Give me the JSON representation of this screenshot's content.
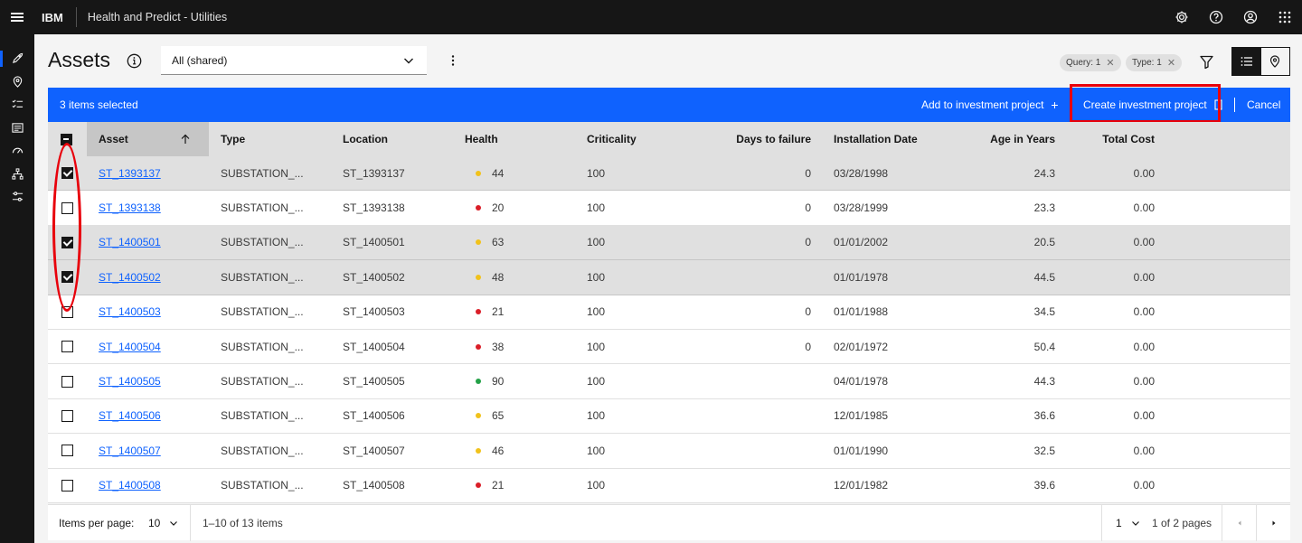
{
  "header": {
    "brand": "IBM",
    "app_name": "Health and Predict - Utilities",
    "icons": [
      "settings-icon",
      "help-icon",
      "user-avatar-icon",
      "app-switcher-icon"
    ]
  },
  "rail": {
    "icons": [
      "rocket-icon",
      "location-icon",
      "task-list-icon",
      "dashboard-icon",
      "gauge-icon",
      "hierarchy-icon",
      "settings-adjust-icon"
    ]
  },
  "page": {
    "title": "Assets",
    "view_select": "All (shared)",
    "tags": [
      {
        "label": "Query: 1"
      },
      {
        "label": "Type: 1"
      }
    ]
  },
  "batch": {
    "count_label": "3 items selected",
    "add_label": "Add to investment project",
    "create_label": "Create investment project",
    "cancel_label": "Cancel"
  },
  "table": {
    "columns": {
      "asset": "Asset",
      "type": "Type",
      "location": "Location",
      "health": "Health",
      "criticality": "Criticality",
      "days": "Days to failure",
      "install": "Installation Date",
      "age": "Age in Years",
      "cost": "Total Cost"
    },
    "rows": [
      {
        "selected": true,
        "asset": "ST_1393137",
        "type": "SUBSTATION_...",
        "location": "ST_1393137",
        "health": "44",
        "health_color": "#f1c21b",
        "criticality": "100",
        "days": "0",
        "install": "03/28/1998",
        "age": "24.3",
        "cost": "0.00"
      },
      {
        "selected": false,
        "asset": "ST_1393138",
        "type": "SUBSTATION_...",
        "location": "ST_1393138",
        "health": "20",
        "health_color": "#da1e28",
        "criticality": "100",
        "days": "0",
        "install": "03/28/1999",
        "age": "23.3",
        "cost": "0.00"
      },
      {
        "selected": true,
        "asset": "ST_1400501",
        "type": "SUBSTATION_...",
        "location": "ST_1400501",
        "health": "63",
        "health_color": "#f1c21b",
        "criticality": "100",
        "days": "0",
        "install": "01/01/2002",
        "age": "20.5",
        "cost": "0.00"
      },
      {
        "selected": true,
        "asset": "ST_1400502",
        "type": "SUBSTATION_...",
        "location": "ST_1400502",
        "health": "48",
        "health_color": "#f1c21b",
        "criticality": "100",
        "days": "",
        "install": "01/01/1978",
        "age": "44.5",
        "cost": "0.00"
      },
      {
        "selected": false,
        "asset": "ST_1400503",
        "type": "SUBSTATION_...",
        "location": "ST_1400503",
        "health": "21",
        "health_color": "#da1e28",
        "criticality": "100",
        "days": "0",
        "install": "01/01/1988",
        "age": "34.5",
        "cost": "0.00"
      },
      {
        "selected": false,
        "asset": "ST_1400504",
        "type": "SUBSTATION_...",
        "location": "ST_1400504",
        "health": "38",
        "health_color": "#da1e28",
        "criticality": "100",
        "days": "0",
        "install": "02/01/1972",
        "age": "50.4",
        "cost": "0.00"
      },
      {
        "selected": false,
        "asset": "ST_1400505",
        "type": "SUBSTATION_...",
        "location": "ST_1400505",
        "health": "90",
        "health_color": "#24a148",
        "criticality": "100",
        "days": "",
        "install": "04/01/1978",
        "age": "44.3",
        "cost": "0.00"
      },
      {
        "selected": false,
        "asset": "ST_1400506",
        "type": "SUBSTATION_...",
        "location": "ST_1400506",
        "health": "65",
        "health_color": "#f1c21b",
        "criticality": "100",
        "days": "",
        "install": "12/01/1985",
        "age": "36.6",
        "cost": "0.00"
      },
      {
        "selected": false,
        "asset": "ST_1400507",
        "type": "SUBSTATION_...",
        "location": "ST_1400507",
        "health": "46",
        "health_color": "#f1c21b",
        "criticality": "100",
        "days": "",
        "install": "01/01/1990",
        "age": "32.5",
        "cost": "0.00"
      },
      {
        "selected": false,
        "asset": "ST_1400508",
        "type": "SUBSTATION_...",
        "location": "ST_1400508",
        "health": "21",
        "health_color": "#da1e28",
        "criticality": "100",
        "days": "",
        "install": "12/01/1982",
        "age": "39.6",
        "cost": "0.00"
      }
    ]
  },
  "pagination": {
    "items_per_page_label": "Items per page:",
    "items_per_page_value": "10",
    "range_label": "1–10 of 13 items",
    "page_value": "1",
    "page_total_label": "1 of 2 pages"
  },
  "colors": {
    "accent": "#0f62fe",
    "annotation_red": "#e8000b"
  }
}
